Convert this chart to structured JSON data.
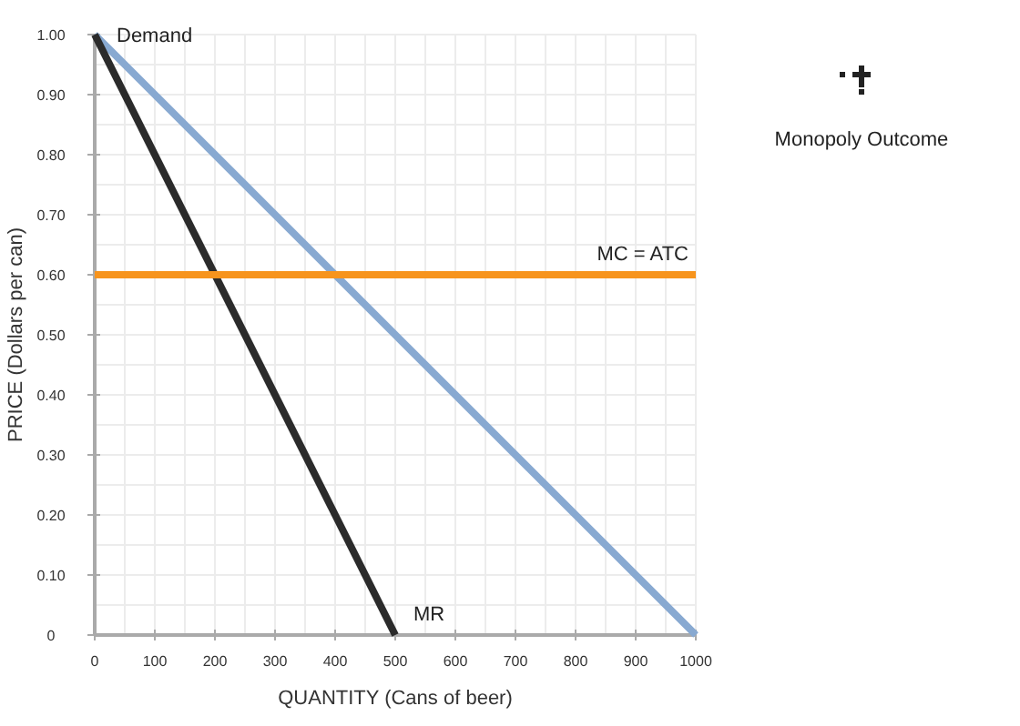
{
  "chart_data": {
    "type": "line",
    "xlabel": "QUANTITY (Cans of beer)",
    "ylabel": "PRICE (Dollars per can)",
    "xlim": [
      0,
      1000
    ],
    "xticks": [
      0,
      100,
      200,
      300,
      400,
      500,
      600,
      700,
      800,
      900,
      1000
    ],
    "ylim": [
      0,
      1
    ],
    "yticks": [
      0,
      {
        "value": 0.1,
        "label": "0.10"
      },
      {
        "value": 0.2,
        "label": "0.20"
      },
      {
        "value": 0.3,
        "label": "0.30"
      },
      {
        "value": 0.4,
        "label": "0.40"
      },
      {
        "value": 0.5,
        "label": "0.50"
      },
      {
        "value": 0.6,
        "label": "0.60"
      },
      {
        "value": 0.7,
        "label": "0.70"
      },
      {
        "value": 0.8,
        "label": "0.80"
      },
      {
        "value": 0.9,
        "label": "0.90"
      },
      {
        "value": 1,
        "label": "1.00"
      }
    ],
    "grid": true,
    "marker": "none",
    "line_style": "solid",
    "series": [
      {
        "color": "#88a9d1",
        "x": [
          0,
          1000
        ],
        "values": [
          1,
          0
        ]
      },
      {
        "color": "#2b2b2b",
        "x": [
          0,
          500
        ],
        "values": [
          1,
          0
        ]
      },
      {
        "color": "#f7941d",
        "x": [
          0,
          1000
        ],
        "values": [
          0.6,
          0.6
        ]
      }
    ],
    "annotations": [
      {
        "text": "Demand",
        "x": 0,
        "y": 1
      },
      {
        "text": "MR",
        "x": 500,
        "y": 0
      },
      {
        "text": "MC = ATC",
        "x": 1000,
        "y": 0.6
      },
      "Monopoly Outcome"
    ]
  }
}
